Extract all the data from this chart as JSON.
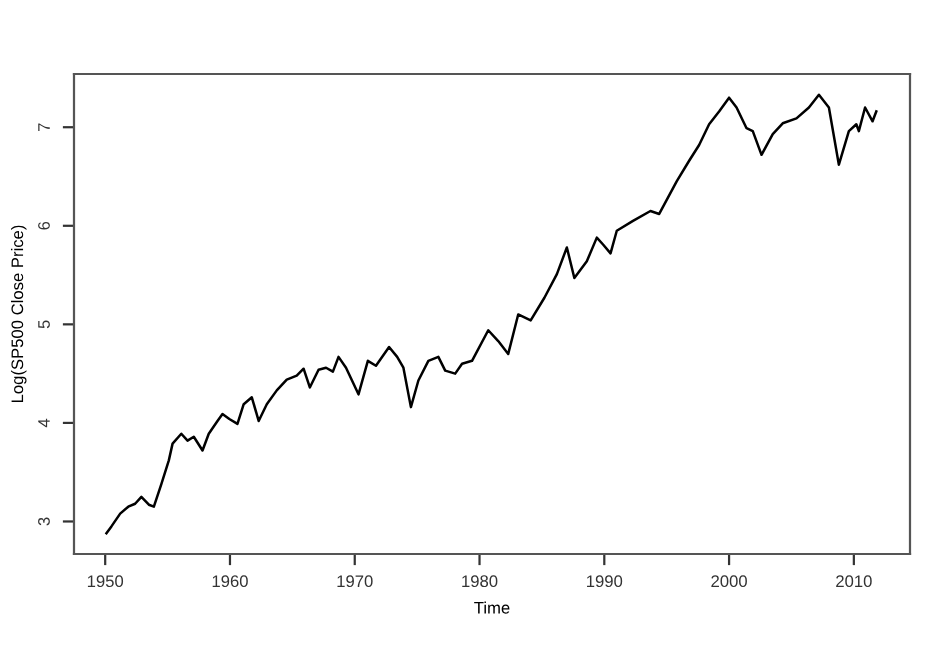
{
  "chart_data": {
    "type": "line",
    "xlabel": "Time",
    "ylabel": "Log(SP500 Close Price)",
    "x": [
      1950.1,
      1950.5,
      1951.2,
      1951.85,
      1952.4,
      1952.9,
      1953.5,
      1953.9,
      1954.5,
      1955.1,
      1955.4,
      1956.1,
      1956.6,
      1957.1,
      1957.8,
      1958.3,
      1959.0,
      1959.4,
      1959.95,
      1960.6,
      1961.1,
      1961.75,
      1962.3,
      1962.95,
      1963.75,
      1964.55,
      1965.35,
      1965.9,
      1966.4,
      1967.1,
      1967.7,
      1968.25,
      1968.7,
      1969.3,
      1970.3,
      1971.05,
      1971.7,
      1972.75,
      1973.4,
      1973.9,
      1974.5,
      1975.1,
      1975.9,
      1976.7,
      1977.25,
      1978.05,
      1978.6,
      1979.4,
      1980.7,
      1981.5,
      1982.3,
      1983.1,
      1984.1,
      1985.2,
      1986.2,
      1987.0,
      1987.6,
      1988.6,
      1989.4,
      1989.9,
      1990.5,
      1991.0,
      1992.3,
      1993.7,
      1994.4,
      1995.8,
      1996.8,
      1997.6,
      1998.4,
      1999.2,
      2000.0,
      2000.6,
      2001.4,
      2001.9,
      2002.6,
      2003.5,
      2004.3,
      2005.4,
      2006.4,
      2007.2,
      2008.0,
      2008.8,
      2009.6,
      2010.2,
      2010.4,
      2010.9,
      2011.5,
      2011.8
    ],
    "series": [
      {
        "color": "#000000",
        "values": [
          2.88,
          2.95,
          3.08,
          3.15,
          3.18,
          3.25,
          3.17,
          3.15,
          3.38,
          3.62,
          3.79,
          3.89,
          3.82,
          3.86,
          3.72,
          3.89,
          4.02,
          4.09,
          4.04,
          3.99,
          4.19,
          4.26,
          4.02,
          4.19,
          4.33,
          4.44,
          4.48,
          4.55,
          4.36,
          4.54,
          4.56,
          4.52,
          4.67,
          4.56,
          4.29,
          4.63,
          4.58,
          4.77,
          4.67,
          4.56,
          4.16,
          4.43,
          4.63,
          4.67,
          4.53,
          4.5,
          4.6,
          4.63,
          4.94,
          4.83,
          4.7,
          5.1,
          5.04,
          5.27,
          5.51,
          5.78,
          5.47,
          5.64,
          5.88,
          5.81,
          5.72,
          5.95,
          6.05,
          6.15,
          6.12,
          6.45,
          6.66,
          6.82,
          7.03,
          7.16,
          7.3,
          7.2,
          6.99,
          6.96,
          6.72,
          6.93,
          7.04,
          7.09,
          7.2,
          7.33,
          7.2,
          6.62,
          6.96,
          7.03,
          6.96,
          7.2,
          7.06,
          7.16
        ]
      }
    ],
    "xlim": [
      1947.5,
      2014.5
    ],
    "xticks": [
      1950,
      1960,
      1970,
      1980,
      1990,
      2000,
      2010
    ],
    "ylim": [
      2.67,
      7.54
    ],
    "yticks": [
      3,
      4,
      5,
      6,
      7
    ],
    "grid": false,
    "legend": false,
    "marker": "none",
    "line_style": "solid"
  }
}
